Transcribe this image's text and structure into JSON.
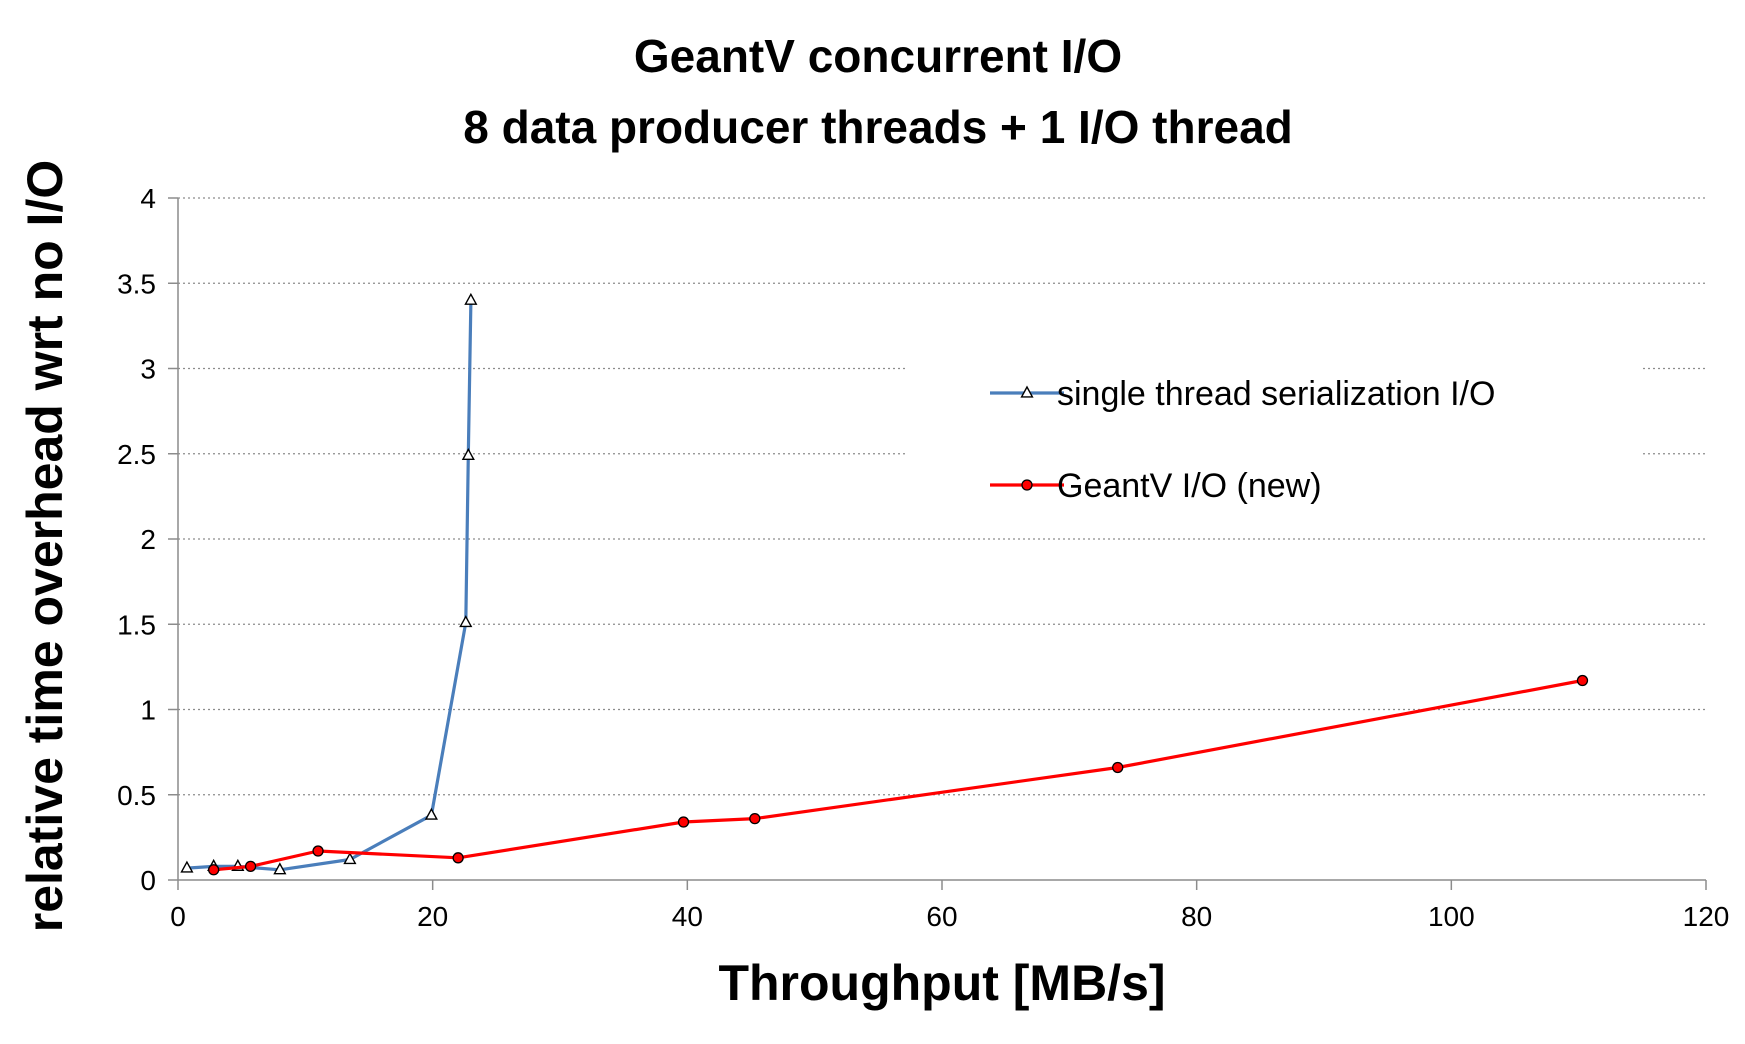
{
  "chart_data": {
    "type": "line",
    "title": "GeantV concurrent I/O",
    "subtitle": "8 data producer threads + 1 I/O thread",
    "xlabel": "Throughput [MB/s]",
    "ylabel": "relative time overhead wrt no I/O",
    "xlim": [
      0,
      120
    ],
    "ylim": [
      0,
      4
    ],
    "x_ticks": [
      "0",
      "20",
      "40",
      "60",
      "80",
      "100",
      "120"
    ],
    "y_ticks": [
      "0",
      "0.5",
      "1",
      "1.5",
      "2",
      "2.5",
      "3",
      "3.5",
      "4"
    ],
    "grid": "horizontal dotted",
    "legend_position": "right",
    "series": [
      {
        "name": "single thread serialization I/O",
        "color": "#4a7ebb",
        "marker": "triangle",
        "x": [
          0.7,
          2.8,
          4.7,
          8.0,
          13.5,
          19.9,
          22.6,
          22.8,
          23.0
        ],
        "y": [
          0.07,
          0.08,
          0.08,
          0.06,
          0.12,
          0.38,
          1.51,
          2.49,
          3.4
        ]
      },
      {
        "name": "GeantV I/O (new)",
        "color": "#ff0000",
        "marker": "circle",
        "x": [
          2.8,
          5.7,
          11.0,
          22.0,
          39.7,
          45.3,
          73.8,
          110.3
        ],
        "y": [
          0.06,
          0.08,
          0.17,
          0.13,
          0.34,
          0.36,
          0.66,
          1.17
        ]
      }
    ]
  }
}
